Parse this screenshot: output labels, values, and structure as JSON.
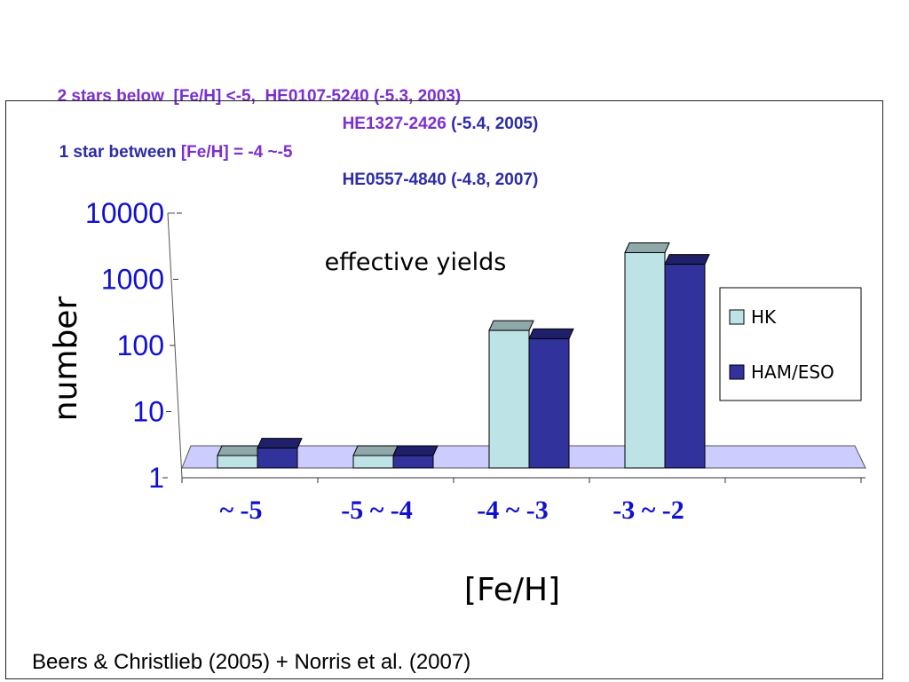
{
  "notes": {
    "line1_prefix": "2 stars below  [Fe/H] <-5,  ",
    "line1_star": "HE0107-5240 (-5.3, 2003)",
    "line2_star_name": "HE1327-2426",
    "line2_star_info": " (-5.4, 2005)",
    "line3": "1 star between ",
    "line3_range": "[Fe/H] = -4 ~-5",
    "line4_star": "HE0557-4840 (-4.8, 2007)"
  },
  "footer": "Beers & Christlieb (2005) + Norris et al. (2007)",
  "colors": {
    "hk": "#bde3e6",
    "ham": "#32329c",
    "floor": "#ccccff",
    "axis_blue": "#1010d0"
  },
  "chart_data": {
    "type": "bar",
    "title": "effective yields",
    "xlabel": "[Fe/H]",
    "ylabel": "number",
    "yscale": "log",
    "ylim": [
      1,
      10000
    ],
    "yticks": [
      "1",
      "10",
      "100",
      "1000",
      "10000"
    ],
    "categories": [
      "~ -5",
      "-5 ~ -4",
      "-4 ~ -3",
      "-3 ~ -2"
    ],
    "series": [
      {
        "name": "HK",
        "values": [
          1,
          1,
          120,
          1800
        ]
      },
      {
        "name": "HAM/ESO",
        "values": [
          2,
          1.5,
          90,
          1200
        ]
      }
    ],
    "legend": "right"
  }
}
